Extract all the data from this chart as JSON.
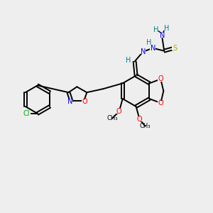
{
  "bg_color": "#eeeeee",
  "bond_color": "#000000",
  "atom_colors": {
    "N": "#0000ff",
    "O": "#ff0000",
    "S": "#aaaa00",
    "Cl": "#00aa00",
    "C": "#000000",
    "H": "#008080"
  },
  "figsize": [
    3.0,
    3.0
  ],
  "dpi": 100
}
